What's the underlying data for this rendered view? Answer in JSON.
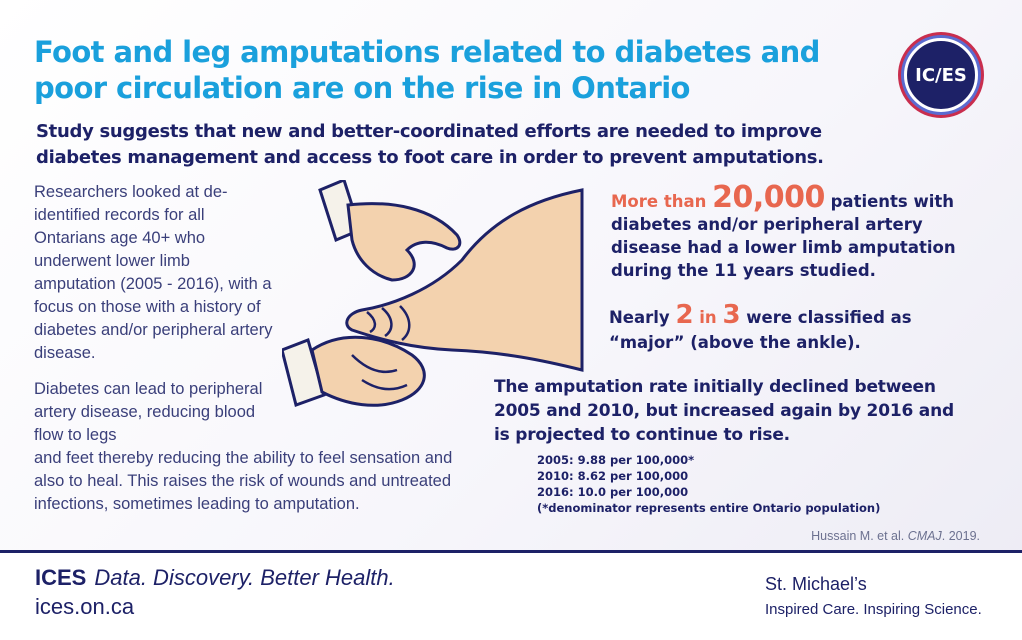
{
  "header": {
    "title": "Foot and leg amputations related to diabetes and poor circulation are on the rise in Ontario",
    "logo_text": "IC/ES",
    "subtitle": "Study suggests that new and better-coordinated efforts are needed to improve diabetes management and access to foot care in order to prevent amputations."
  },
  "left": {
    "paragraph1": "Researchers looked at de-identified records for all Ontarians age 40+  who underwent lower limb amputation (2005 - 2016), with a focus on those with a history of diabetes and/or peripheral artery disease.",
    "paragraph2_part1": "Diabetes can lead to peripheral artery disease, reducing blood flow to legs",
    "paragraph2_part2": "and feet thereby reducing the ability to feel sensation and also to heal. This raises the risk of wounds and untreated infections, sometimes leading to amputation."
  },
  "stats": {
    "s1_prefix": "More than ",
    "s1_number": "20,000",
    "s1_suffix": " patients with diabetes and/or peripheral artery disease had a lower limb amputation during the 11 years studied.",
    "s2_prefix": "Nearly ",
    "s2_num1": "2",
    "s2_in": " in ",
    "s2_num2": "3",
    "s2_suffix": " were classified as “major” (above the ankle).",
    "s3": "The amputation rate initially declined between 2005 and 2010, but increased again by 2016 and is projected to continue to rise.",
    "rates": [
      "2005: 9.88 per 100,000*",
      "2010: 8.62 per 100,000",
      "2016: 10.0 per 100,000",
      "(*denominator represents entire Ontario population)"
    ]
  },
  "citation": {
    "authors": "Hussain M.  et al. ",
    "journal": "CMAJ",
    "year": ". 2019."
  },
  "footer": {
    "brand": "ICES",
    "tagline": "Data. Discovery. Better Health.",
    "url": "ices.on.ca",
    "partner": "St. Michael’s",
    "partner_tagline": "Inspired Care. Inspiring Science."
  },
  "colors": {
    "title": "#1aa0dc",
    "navy": "#1d2167",
    "accent": "#e8674f",
    "skin": "#f3d2ae",
    "outline": "#1d2167"
  },
  "illustration": "hands-holding-foot"
}
